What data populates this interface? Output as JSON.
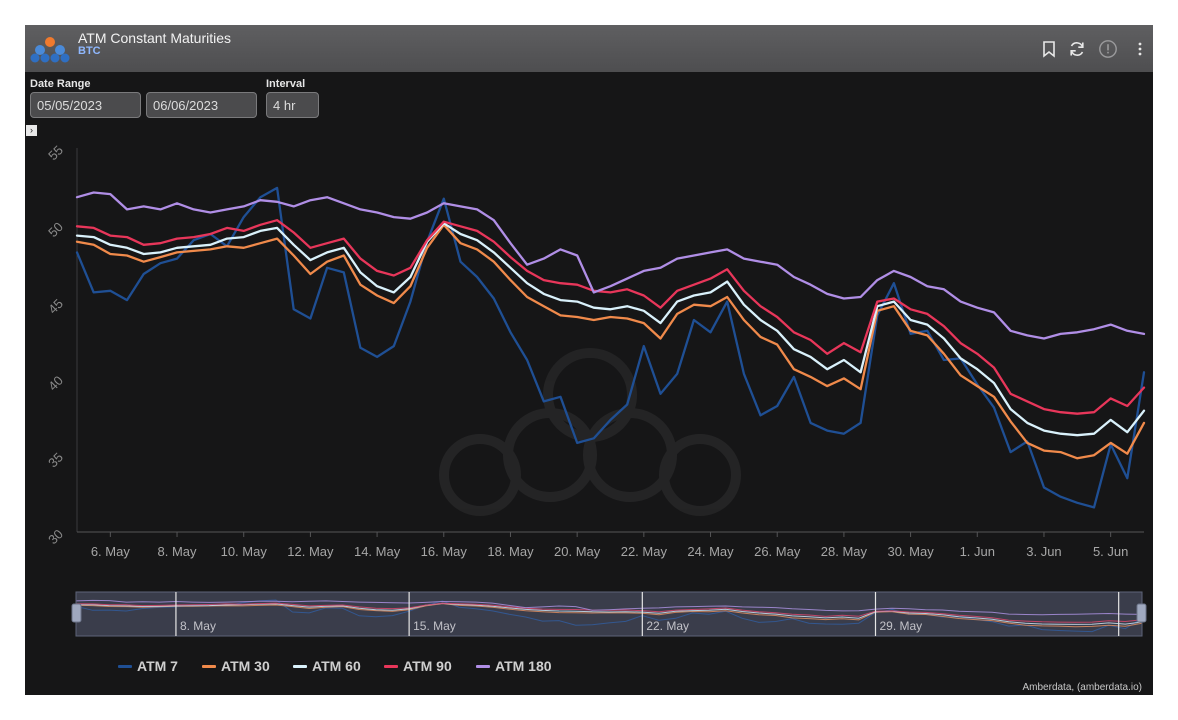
{
  "header": {
    "title": "ATM Constant Maturities",
    "subtitle": "BTC"
  },
  "controls": {
    "date_range_label": "Date Range",
    "start_date": "05/05/2023",
    "end_date": "06/06/2023",
    "interval_label": "Interval",
    "interval": "4 hr"
  },
  "icons": [
    "logo-icon",
    "bookmark-icon",
    "refresh-icon",
    "info-icon",
    "more-vertical-icon",
    "chevron-right-icon"
  ],
  "colors": {
    "background": "#161617",
    "titlebar": "#555557",
    "atm7": "#1f4f94",
    "atm30": "#f08a4b",
    "atm60": "#d9f1fb",
    "atm90": "#e8365a",
    "atm180": "#b08ee6"
  },
  "chart_data": {
    "type": "line",
    "title": "",
    "xlabel": "",
    "ylabel": "",
    "ylim": [
      30,
      55
    ],
    "y_ticks": [
      "30",
      "35",
      "40",
      "45",
      "50",
      "55"
    ],
    "x_ticks": [
      "6. May",
      "8. May",
      "10. May",
      "12. May",
      "14. May",
      "16. May",
      "18. May",
      "20. May",
      "22. May",
      "24. May",
      "26. May",
      "28. May",
      "30. May",
      "1. Jun",
      "3. Jun",
      "5. Jun"
    ],
    "x_tick_days": [
      1,
      3,
      5,
      7,
      9,
      11,
      13,
      15,
      17,
      19,
      21,
      23,
      25,
      27,
      29,
      31
    ],
    "x_range_days": [
      0,
      32
    ],
    "x": [
      0,
      0.5,
      1,
      1.5,
      2,
      2.5,
      3,
      3.5,
      4,
      4.5,
      5,
      5.5,
      6,
      6.5,
      7,
      7.5,
      8,
      8.5,
      9,
      9.5,
      10,
      10.5,
      11,
      11.5,
      12,
      12.5,
      13,
      13.5,
      14,
      14.5,
      15,
      15.5,
      16,
      16.5,
      17,
      17.5,
      18,
      18.5,
      19,
      19.5,
      20,
      20.5,
      21,
      21.5,
      22,
      22.5,
      23,
      23.5,
      24,
      24.5,
      25,
      25.5,
      26,
      26.5,
      27,
      27.5,
      28,
      28.5,
      29,
      29.5,
      30,
      30.5,
      31,
      31.5,
      32
    ],
    "series": [
      {
        "name": "ATM 7",
        "values": [
          48.2,
          45.6,
          45.7,
          45.1,
          46.8,
          47.5,
          47.8,
          49.0,
          49.4,
          48.6,
          50.5,
          51.8,
          52.4,
          44.5,
          43.9,
          47.2,
          46.9,
          42.0,
          41.4,
          42.1,
          45.0,
          48.9,
          51.7,
          47.6,
          46.6,
          45.2,
          43.0,
          41.2,
          38.5,
          38.8,
          35.8,
          36.1,
          37.3,
          38.3,
          42.1,
          39.0,
          40.3,
          43.8,
          43.0,
          45.0,
          40.3,
          37.6,
          38.2,
          40.1,
          37.1,
          36.6,
          36.4,
          37.1,
          44.1,
          46.2,
          42.9,
          43.1,
          41.2,
          41.3,
          39.6,
          38.1,
          35.2,
          35.9,
          32.9,
          32.3,
          31.9,
          31.6,
          35.7,
          33.5,
          40.4
        ]
      },
      {
        "name": "ATM 30",
        "values": [
          48.9,
          48.7,
          48.1,
          48.0,
          47.6,
          47.9,
          48.2,
          48.3,
          48.4,
          48.6,
          48.5,
          48.8,
          49.1,
          48.0,
          46.8,
          47.6,
          48.0,
          46.1,
          45.4,
          44.9,
          46.0,
          48.5,
          50.0,
          48.8,
          48.4,
          47.6,
          46.4,
          45.3,
          44.7,
          44.1,
          44.0,
          43.8,
          44.0,
          43.9,
          43.6,
          42.6,
          44.2,
          44.8,
          44.7,
          45.3,
          43.8,
          42.7,
          42.2,
          40.6,
          40.1,
          39.5,
          40.0,
          39.3,
          44.4,
          44.7,
          43.1,
          42.8,
          41.6,
          40.2,
          39.5,
          38.8,
          37.2,
          35.8,
          35.3,
          35.2,
          34.8,
          35.0,
          35.8,
          35.1,
          37.1
        ]
      },
      {
        "name": "ATM 60",
        "values": [
          49.3,
          49.2,
          48.7,
          48.5,
          48.1,
          48.2,
          48.5,
          48.6,
          48.7,
          49.1,
          49.2,
          49.6,
          49.8,
          48.7,
          47.7,
          48.2,
          48.5,
          46.9,
          46.0,
          45.6,
          46.6,
          48.9,
          50.1,
          49.4,
          49.0,
          48.2,
          47.2,
          46.2,
          45.5,
          45.1,
          45.0,
          44.6,
          44.5,
          44.7,
          44.4,
          43.6,
          45.0,
          45.4,
          45.6,
          46.3,
          44.8,
          43.8,
          43.1,
          41.9,
          41.4,
          40.6,
          41.2,
          40.4,
          44.7,
          45.0,
          43.8,
          43.5,
          42.6,
          41.3,
          40.6,
          39.7,
          38.0,
          37.1,
          36.6,
          36.4,
          36.3,
          36.4,
          37.3,
          36.5,
          37.9
        ]
      },
      {
        "name": "ATM 90",
        "values": [
          49.9,
          49.8,
          49.3,
          49.2,
          48.7,
          48.8,
          49.1,
          49.2,
          49.4,
          49.8,
          49.6,
          50.0,
          50.3,
          49.5,
          48.5,
          48.8,
          49.1,
          47.8,
          47.0,
          46.7,
          47.2,
          49.0,
          50.2,
          49.9,
          49.6,
          48.9,
          47.9,
          47.0,
          46.4,
          46.2,
          46.1,
          45.7,
          45.6,
          45.8,
          45.4,
          44.6,
          45.7,
          46.1,
          46.5,
          47.1,
          45.7,
          44.7,
          44.0,
          43.0,
          42.5,
          41.6,
          42.3,
          41.7,
          45.0,
          45.2,
          44.5,
          44.2,
          43.4,
          42.3,
          41.6,
          40.7,
          39.0,
          38.5,
          38.0,
          37.8,
          37.7,
          37.8,
          38.7,
          38.2,
          39.4
        ]
      },
      {
        "name": "ATM 180",
        "values": [
          51.8,
          52.1,
          52.0,
          51.0,
          51.2,
          51.0,
          51.4,
          51.0,
          50.8,
          51.0,
          51.2,
          51.6,
          51.5,
          51.2,
          51.6,
          51.8,
          51.4,
          51.0,
          50.8,
          50.5,
          50.4,
          50.8,
          51.4,
          51.2,
          51.0,
          50.3,
          48.8,
          47.4,
          47.8,
          48.4,
          48.0,
          45.6,
          46.0,
          46.5,
          47.0,
          47.2,
          47.8,
          48.0,
          48.2,
          48.4,
          47.8,
          47.6,
          47.4,
          46.6,
          46.1,
          45.5,
          45.2,
          45.3,
          46.4,
          47.0,
          46.6,
          46.0,
          45.8,
          45.0,
          44.6,
          44.3,
          43.1,
          42.8,
          42.6,
          42.9,
          43.0,
          43.2,
          43.5,
          43.1,
          42.9
        ]
      }
    ],
    "navigator_labels": [
      "8. May",
      "15. May",
      "22. May",
      "29. May"
    ],
    "navigator_label_days": [
      3,
      10,
      17,
      24
    ],
    "legend_position": "bottom-left",
    "credits": "Amberdata, (amberdata.io)"
  }
}
